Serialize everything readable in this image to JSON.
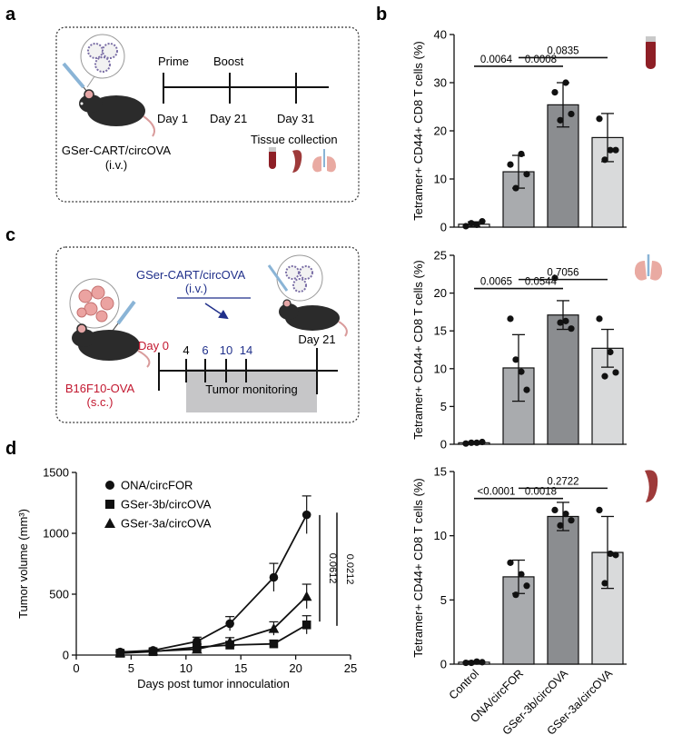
{
  "panel_letters": {
    "a": "a",
    "b": "b",
    "c": "c",
    "d": "d"
  },
  "schedule_a": {
    "prime": "Prime",
    "boost": "Boost",
    "day1": "Day 1",
    "day21": "Day 21",
    "day31": "Day 31",
    "treatment": "GSer-CART/circOVA",
    "route": "(i.v.)",
    "tissue": "Tissue collection"
  },
  "schedule_c": {
    "treatment": "GSer-CART/circOVA",
    "route": "(i.v.)",
    "day0": "Day 0",
    "d4": "4",
    "d6": "6",
    "d10": "10",
    "d14": "14",
    "day21": "Day 21",
    "monitoring": "Tumor monitoring",
    "tumor": "B16F10-OVA",
    "tumor_route": "(s.c.)"
  },
  "colors": {
    "control": "#ffffff",
    "onafor": "#a9abae",
    "gser3b": "#8b8d90",
    "gser3a": "#d9dadb",
    "blue": "#1f2f8a",
    "red": "#c2172f",
    "blood": "#8e1f26",
    "spleen": "#9e3a3a",
    "lung": "#e9aaa2",
    "box_fill": "#c6c6c8"
  },
  "chart_data": [
    {
      "type": "bar",
      "panel": "b-top",
      "tissue_icon": "blood-tube-icon",
      "ylabel": "Tetramer+ CD44+ CD8 T cells (%)",
      "categories": [
        "Control",
        "ONA/circFOR",
        "GSer-3b/circOVA",
        "GSer-3a/circOVA"
      ],
      "values": [
        0.6,
        11.5,
        25.4,
        18.6
      ],
      "errors": [
        0.5,
        3.4,
        4.6,
        5.0
      ],
      "points": [
        [
          0.2,
          0.5,
          1.2,
          0.8
        ],
        [
          13.0,
          15.2,
          11.0,
          8.1
        ],
        [
          28.0,
          30.0,
          23.5,
          22.2
        ],
        [
          22.5,
          16.0,
          16.0,
          14.0
        ]
      ],
      "ylim": [
        0,
        40
      ],
      "yticks": [
        0,
        10,
        20,
        30,
        40
      ],
      "comparisons": [
        {
          "from": 0,
          "to": 1,
          "label": "0.0064",
          "y": 33.4
        },
        {
          "from": 1,
          "to": 2,
          "label": "0.0008",
          "y": 33.4
        },
        {
          "from": 1,
          "to": 3,
          "label": "0.0835",
          "y": 35.2
        }
      ]
    },
    {
      "type": "bar",
      "panel": "b-middle",
      "tissue_icon": "lung-icon",
      "ylabel": "Tetramer+ CD44+ CD8 T cells (%)",
      "categories": [
        "Control",
        "ONA/circFOR",
        "GSer-3b/circOVA",
        "GSer-3a/circOVA"
      ],
      "values": [
        0.2,
        10.1,
        17.1,
        12.7
      ],
      "errors": [
        0.1,
        4.4,
        1.9,
        2.5
      ],
      "points": [
        [
          0.1,
          0.2,
          0.3,
          0.2
        ],
        [
          16.6,
          9.6,
          7.2,
          11.2
        ],
        [
          22.0,
          16.3,
          15.3,
          16.1
        ],
        [
          16.6,
          12.2,
          9.5,
          9.0
        ]
      ],
      "ylim": [
        0,
        25
      ],
      "yticks": [
        0,
        5,
        10,
        15,
        20,
        25
      ],
      "comparisons": [
        {
          "from": 0,
          "to": 1,
          "label": "0.0065",
          "y": 20.6
        },
        {
          "from": 1,
          "to": 2,
          "label": "0.0544",
          "y": 20.6
        },
        {
          "from": 1,
          "to": 3,
          "label": "0.7056",
          "y": 21.8
        }
      ]
    },
    {
      "type": "bar",
      "panel": "b-bottom",
      "tissue_icon": "spleen-icon",
      "ylabel": "Tetramer+ CD44+ CD8 T cells (%)",
      "categories": [
        "Control",
        "ONA/circFOR",
        "GSer-3b/circOVA",
        "GSer-3a/circOVA"
      ],
      "values": [
        0.15,
        6.8,
        11.5,
        8.7
      ],
      "errors": [
        0.1,
        1.3,
        1.1,
        2.8
      ],
      "points": [
        [
          0.1,
          0.2,
          0.15,
          0.1
        ],
        [
          7.9,
          7.0,
          6.1,
          5.4
        ],
        [
          12.0,
          11.7,
          11.2,
          10.8
        ],
        [
          12.0,
          8.6,
          8.5,
          6.3
        ]
      ],
      "ylim": [
        0,
        15
      ],
      "yticks": [
        0,
        5,
        10,
        15
      ],
      "comparisons": [
        {
          "from": 0,
          "to": 1,
          "label": "<0.0001",
          "y": 12.9
        },
        {
          "from": 1,
          "to": 2,
          "label": "0.0018",
          "y": 12.9
        },
        {
          "from": 1,
          "to": 3,
          "label": "0.2722",
          "y": 13.7
        }
      ]
    },
    {
      "type": "line",
      "panel": "d",
      "xlabel": "Days post tumor innoculation",
      "ylabel": "Tumor volume (mm³)",
      "xlim": [
        0,
        25
      ],
      "ylim": [
        0,
        1500
      ],
      "xticks": [
        0,
        5,
        10,
        15,
        20,
        25
      ],
      "yticks": [
        0,
        500,
        1000,
        1500
      ],
      "x": [
        4,
        7,
        11,
        14,
        18,
        21
      ],
      "series": [
        {
          "name": "ONA/circFOR",
          "marker": "circle",
          "values": [
            25,
            38,
            112,
            258,
            638,
            1152
          ],
          "errors": [
            12,
            15,
            35,
            58,
            115,
            155
          ]
        },
        {
          "name": "GSer-3b/circOVA",
          "marker": "square",
          "values": [
            15,
            28,
            65,
            82,
            92,
            248
          ],
          "errors": [
            8,
            10,
            25,
            28,
            30,
            75
          ]
        },
        {
          "name": "GSer-3a/circOVA",
          "marker": "triangle",
          "values": [
            18,
            32,
            48,
            108,
            218,
            482
          ],
          "errors": [
            8,
            12,
            22,
            35,
            55,
            100
          ]
        }
      ],
      "comparisons": [
        {
          "label": "0.0612"
        },
        {
          "label": "0.0212"
        }
      ]
    }
  ]
}
